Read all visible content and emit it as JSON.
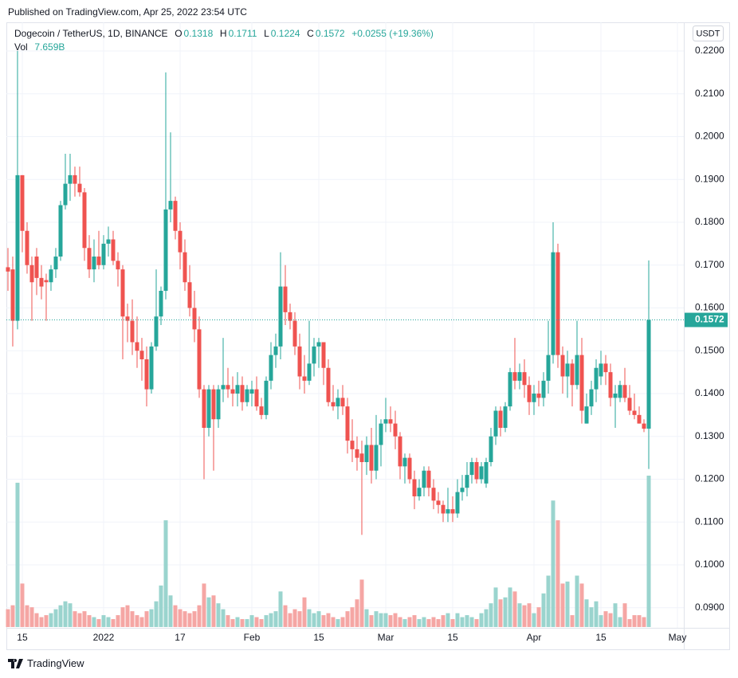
{
  "published": "Published on TradingView.com, Apr 25, 2022 23:54 UTC",
  "brand": "TradingView",
  "currency_button": "USDT",
  "chart_data": {
    "type": "candlestick",
    "title": "Dogecoin / TetherUS, 1D, BINANCE",
    "ohlc_labels": [
      "O",
      "H",
      "L",
      "C"
    ],
    "change": "+0.0255 (+19.36%)",
    "volume_label": "Vol",
    "volume_value_label": "7.659B",
    "up_color": "#26a69a",
    "down_color": "#ef5350",
    "volume_up_color": "#9ad4ce",
    "volume_down_color": "#f5a6a4",
    "grid": true,
    "xlim": [
      -0.33,
      141.33
    ],
    "xticks": [
      {
        "value": 3,
        "label": "15"
      },
      {
        "value": 20,
        "label": "2022"
      },
      {
        "value": 36,
        "label": "17"
      },
      {
        "value": 51,
        "label": "Feb"
      },
      {
        "value": 65,
        "label": "15"
      },
      {
        "value": 79,
        "label": "Mar"
      },
      {
        "value": 93,
        "label": "15"
      },
      {
        "value": 110,
        "label": "Apr"
      },
      {
        "value": 124,
        "label": "15"
      },
      {
        "value": 140,
        "label": "May"
      }
    ],
    "ylim": [
      0.0853,
      0.2267
    ],
    "yticks": [
      {
        "value": 0.22,
        "label": "0.2200"
      },
      {
        "value": 0.21,
        "label": "0.2100"
      },
      {
        "value": 0.2,
        "label": "0.2000"
      },
      {
        "value": 0.19,
        "label": "0.1900"
      },
      {
        "value": 0.18,
        "label": "0.1800"
      },
      {
        "value": 0.17,
        "label": "0.1700"
      },
      {
        "value": 0.16,
        "label": "0.1600"
      },
      {
        "value": 0.15,
        "label": "0.1500"
      },
      {
        "value": 0.14,
        "label": "0.1400"
      },
      {
        "value": 0.13,
        "label": "0.1300"
      },
      {
        "value": 0.12,
        "label": "0.1200"
      },
      {
        "value": 0.11,
        "label": "0.1100"
      },
      {
        "value": 0.1,
        "label": "0.1000"
      },
      {
        "value": 0.09,
        "label": "0.0900"
      }
    ],
    "open": [
      0.1695,
      0.169,
      0.157,
      0.191,
      0.178,
      0.17,
      0.172,
      0.167,
      0.1665,
      0.166,
      0.169,
      0.172,
      0.184,
      0.189,
      0.191,
      0.189,
      0.187,
      0.174,
      0.169,
      0.172,
      0.17,
      0.175,
      0.176,
      0.171,
      0.169,
      0.158,
      0.157,
      0.152,
      0.15,
      0.148,
      0.141,
      0.151,
      0.158,
      0.164,
      0.183,
      0.185,
      0.178,
      0.173,
      0.166,
      0.16,
      0.155,
      0.141,
      0.132,
      0.141,
      0.134,
      0.141,
      0.142,
      0.141,
      0.14,
      0.142,
      0.138,
      0.14,
      0.141,
      0.137,
      0.135,
      0.143,
      0.149,
      0.151,
      0.165,
      0.159,
      0.157,
      0.151,
      0.144,
      0.143,
      0.147,
      0.151,
      0.152,
      0.146,
      0.138,
      0.137,
      0.139,
      0.137,
      0.129,
      0.127,
      0.126,
      0.124,
      0.128,
      0.122,
      0.128,
      0.133,
      0.134,
      0.133,
      0.13,
      0.123,
      0.125,
      0.12,
      0.116,
      0.118,
      0.122,
      0.118,
      0.115,
      0.114,
      0.112,
      0.113,
      0.112,
      0.117,
      0.118,
      0.121,
      0.124,
      0.12,
      0.119,
      0.124,
      0.13,
      0.136,
      0.132,
      0.137,
      0.145,
      0.143,
      0.145,
      0.142,
      0.138,
      0.14,
      0.139,
      0.143,
      0.149,
      0.173,
      0.149,
      0.144,
      0.147,
      0.142,
      0.149,
      0.133,
      0.137,
      0.141,
      0.144,
      0.147,
      0.145,
      0.139,
      0.139,
      0.142,
      0.139,
      0.136,
      0.135,
      0.133,
      0.1318
    ],
    "high": [
      0.174,
      0.172,
      0.22,
      0.191,
      0.18,
      0.172,
      0.174,
      0.17,
      0.168,
      0.17,
      0.174,
      0.185,
      0.196,
      0.196,
      0.193,
      0.193,
      0.188,
      0.177,
      0.176,
      0.178,
      0.177,
      0.179,
      0.178,
      0.173,
      0.17,
      0.161,
      0.162,
      0.158,
      0.153,
      0.151,
      0.152,
      0.169,
      0.165,
      0.215,
      0.201,
      0.186,
      0.18,
      0.176,
      0.17,
      0.164,
      0.158,
      0.142,
      0.142,
      0.142,
      0.142,
      0.153,
      0.146,
      0.144,
      0.145,
      0.144,
      0.142,
      0.143,
      0.144,
      0.139,
      0.144,
      0.152,
      0.154,
      0.173,
      0.17,
      0.161,
      0.159,
      0.154,
      0.149,
      0.157,
      0.153,
      0.153,
      0.152,
      0.148,
      0.142,
      0.141,
      0.142,
      0.139,
      0.134,
      0.13,
      0.129,
      0.13,
      0.132,
      0.135,
      0.134,
      0.139,
      0.137,
      0.136,
      0.131,
      0.126,
      0.126,
      0.122,
      0.12,
      0.123,
      0.123,
      0.12,
      0.117,
      0.115,
      0.118,
      0.116,
      0.12,
      0.121,
      0.124,
      0.125,
      0.125,
      0.124,
      0.125,
      0.132,
      0.137,
      0.137,
      0.138,
      0.146,
      0.153,
      0.147,
      0.148,
      0.144,
      0.142,
      0.143,
      0.145,
      0.157,
      0.18,
      0.175,
      0.151,
      0.15,
      0.148,
      0.157,
      0.153,
      0.14,
      0.143,
      0.148,
      0.15,
      0.149,
      0.147,
      0.142,
      0.143,
      0.146,
      0.142,
      0.14,
      0.137,
      0.134,
      0.1711
    ],
    "low": [
      0.164,
      0.151,
      0.155,
      0.173,
      0.168,
      0.157,
      0.163,
      0.162,
      0.157,
      0.164,
      0.167,
      0.171,
      0.183,
      0.185,
      0.186,
      0.186,
      0.171,
      0.167,
      0.166,
      0.169,
      0.169,
      0.172,
      0.17,
      0.165,
      0.148,
      0.152,
      0.149,
      0.146,
      0.143,
      0.137,
      0.14,
      0.15,
      0.156,
      0.162,
      0.18,
      0.176,
      0.169,
      0.164,
      0.158,
      0.152,
      0.139,
      0.12,
      0.13,
      0.122,
      0.132,
      0.138,
      0.139,
      0.137,
      0.137,
      0.136,
      0.137,
      0.137,
      0.136,
      0.134,
      0.134,
      0.141,
      0.146,
      0.148,
      0.156,
      0.155,
      0.149,
      0.141,
      0.14,
      0.142,
      0.144,
      0.146,
      0.142,
      0.137,
      0.136,
      0.134,
      0.135,
      0.126,
      0.124,
      0.122,
      0.107,
      0.121,
      0.119,
      0.12,
      0.123,
      0.131,
      0.131,
      0.127,
      0.12,
      0.119,
      0.119,
      0.113,
      0.115,
      0.116,
      0.116,
      0.113,
      0.112,
      0.11,
      0.11,
      0.11,
      0.111,
      0.115,
      0.116,
      0.119,
      0.119,
      0.119,
      0.118,
      0.123,
      0.128,
      0.13,
      0.131,
      0.136,
      0.141,
      0.141,
      0.139,
      0.135,
      0.135,
      0.137,
      0.137,
      0.14,
      0.147,
      0.146,
      0.14,
      0.139,
      0.137,
      0.141,
      0.133,
      0.133,
      0.135,
      0.138,
      0.142,
      0.142,
      0.137,
      0.132,
      0.138,
      0.138,
      0.135,
      0.134,
      0.133,
      0.131,
      0.1224
    ],
    "close": [
      0.1685,
      0.157,
      0.191,
      0.178,
      0.17,
      0.166,
      0.167,
      0.165,
      0.166,
      0.169,
      0.172,
      0.184,
      0.189,
      0.191,
      0.189,
      0.187,
      0.174,
      0.169,
      0.172,
      0.17,
      0.175,
      0.176,
      0.171,
      0.169,
      0.158,
      0.157,
      0.152,
      0.15,
      0.148,
      0.141,
      0.151,
      0.158,
      0.164,
      0.183,
      0.185,
      0.178,
      0.173,
      0.166,
      0.16,
      0.155,
      0.141,
      0.132,
      0.141,
      0.134,
      0.141,
      0.142,
      0.141,
      0.14,
      0.142,
      0.138,
      0.141,
      0.141,
      0.137,
      0.135,
      0.143,
      0.149,
      0.151,
      0.165,
      0.159,
      0.157,
      0.151,
      0.144,
      0.143,
      0.147,
      0.151,
      0.152,
      0.146,
      0.138,
      0.137,
      0.139,
      0.137,
      0.129,
      0.127,
      0.125,
      0.124,
      0.128,
      0.122,
      0.128,
      0.133,
      0.134,
      0.133,
      0.13,
      0.123,
      0.125,
      0.12,
      0.116,
      0.118,
      0.122,
      0.118,
      0.115,
      0.114,
      0.112,
      0.113,
      0.112,
      0.117,
      0.118,
      0.121,
      0.124,
      0.12,
      0.123,
      0.124,
      0.13,
      0.136,
      0.132,
      0.137,
      0.145,
      0.143,
      0.145,
      0.142,
      0.138,
      0.14,
      0.139,
      0.143,
      0.149,
      0.173,
      0.149,
      0.144,
      0.147,
      0.142,
      0.149,
      0.136,
      0.137,
      0.141,
      0.146,
      0.147,
      0.145,
      0.139,
      0.14,
      0.142,
      0.139,
      0.136,
      0.135,
      0.133,
      0.1318,
      0.1572
    ],
    "volume": [
      0.9,
      1.1,
      7.3,
      2.2,
      1.1,
      1.0,
      0.7,
      0.5,
      0.6,
      0.7,
      0.9,
      1.1,
      1.3,
      1.2,
      0.8,
      0.7,
      0.8,
      0.6,
      0.5,
      0.4,
      0.6,
      0.5,
      0.4,
      0.6,
      1.0,
      1.1,
      0.8,
      0.6,
      0.5,
      0.8,
      0.9,
      1.3,
      2.1,
      5.4,
      1.6,
      1.1,
      0.9,
      0.8,
      0.7,
      0.8,
      1.1,
      2.2,
      1.5,
      1.6,
      1.2,
      0.9,
      0.6,
      0.4,
      0.5,
      0.4,
      0.4,
      0.6,
      0.5,
      0.4,
      0.6,
      0.7,
      0.8,
      1.8,
      1.1,
      0.7,
      0.9,
      0.8,
      1.5,
      0.9,
      0.7,
      0.8,
      0.6,
      0.7,
      0.5,
      0.4,
      0.5,
      0.8,
      1.0,
      1.4,
      2.4,
      0.9,
      0.6,
      0.8,
      0.7,
      0.7,
      0.6,
      0.7,
      0.5,
      0.4,
      0.5,
      0.6,
      0.4,
      0.5,
      0.4,
      0.5,
      0.4,
      0.6,
      0.7,
      0.4,
      0.7,
      0.5,
      0.6,
      0.5,
      0.4,
      0.7,
      0.9,
      1.2,
      2.0,
      1.4,
      1.5,
      2.0,
      1.8,
      1.2,
      1.1,
      1.2,
      0.7,
      1.0,
      1.7,
      2.6,
      6.4,
      5.4,
      2.2,
      2.3,
      0.6,
      2.6,
      2.2,
      1.4,
      1.0,
      1.3,
      0.6,
      0.8,
      0.7,
      1.2,
      0.5,
      1.2,
      0.4,
      0.6,
      0.6,
      0.5,
      7.659
    ]
  }
}
